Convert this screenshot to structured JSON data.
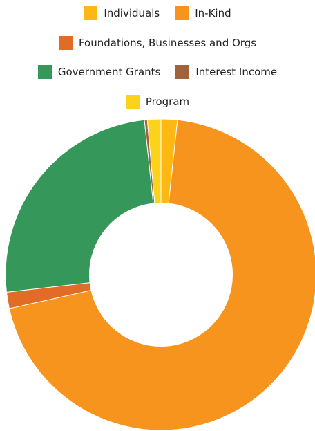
{
  "chart_data": {
    "type": "pie",
    "style": "donut",
    "legend_position": "top",
    "categories": [
      "Individuals",
      "In-Kind",
      "Foundations, Businesses and Orgs",
      "Government Grants",
      "Interest Income",
      "Program"
    ],
    "legend_rows": [
      [
        "Individuals",
        "In-Kind"
      ],
      [
        "Foundations, Businesses and Orgs"
      ],
      [
        "Government Grants",
        "Interest Income"
      ],
      [
        "Program"
      ]
    ],
    "values": [
      1.7,
      69.8,
      1.7,
      25.1,
      0.3,
      1.4
    ],
    "colors": [
      "#FDB813",
      "#F7941D",
      "#E26B26",
      "#36975A",
      "#A0623B",
      "#FCD21B"
    ],
    "start_angle_deg": 0,
    "direction": "clockwise",
    "inner_radius_ratio": 0.46
  }
}
